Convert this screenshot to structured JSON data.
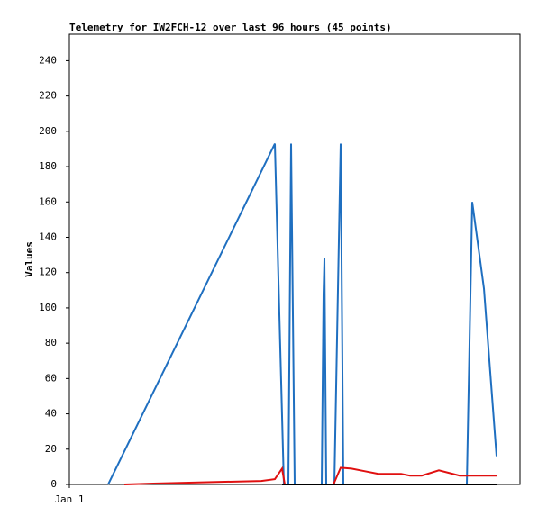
{
  "chart_data": {
    "type": "line",
    "title": "Telemetry for IW2FCH-12 over last 96 hours (45 points)",
    "y_label": "Values",
    "xlim": [
      0,
      100
    ],
    "xticks": [
      {
        "value": 0,
        "label": "Jan 1"
      }
    ],
    "ylim": [
      0,
      255
    ],
    "yticks": [
      0,
      20,
      40,
      60,
      80,
      100,
      120,
      140,
      160,
      180,
      200,
      220,
      240
    ],
    "series": [
      {
        "color": "#1f6fc0",
        "x": [
          8.6,
          45.6,
          47.6,
          48.6,
          49.2,
          50.0,
          56.0,
          56.4,
          56.6,
          57.0,
          58.8,
          60.2,
          60.8,
          88.2,
          89.4,
          92.0,
          94.8
        ],
        "values": [
          0,
          193,
          0,
          0,
          193,
          0,
          0,
          108,
          128,
          0,
          0,
          193,
          0,
          0,
          160,
          111,
          16
        ]
      },
      {
        "color": "#e01010",
        "x": [
          12.2,
          18.6,
          26.6,
          34.6,
          42.6,
          45.6,
          47.2,
          47.8,
          58.6,
          60.2,
          62.6,
          65.6,
          68.6,
          73.6,
          75.6,
          78.2,
          82.0,
          86.6,
          94.8
        ],
        "values": [
          0,
          0.5,
          1,
          1.5,
          2,
          3,
          9,
          0,
          0,
          9.5,
          9,
          7.5,
          6,
          6,
          5,
          5,
          8,
          5,
          5
        ]
      },
      {
        "color": "#000000",
        "x": [
          47.2,
          94.8
        ],
        "values": [
          0,
          0
        ]
      }
    ]
  }
}
